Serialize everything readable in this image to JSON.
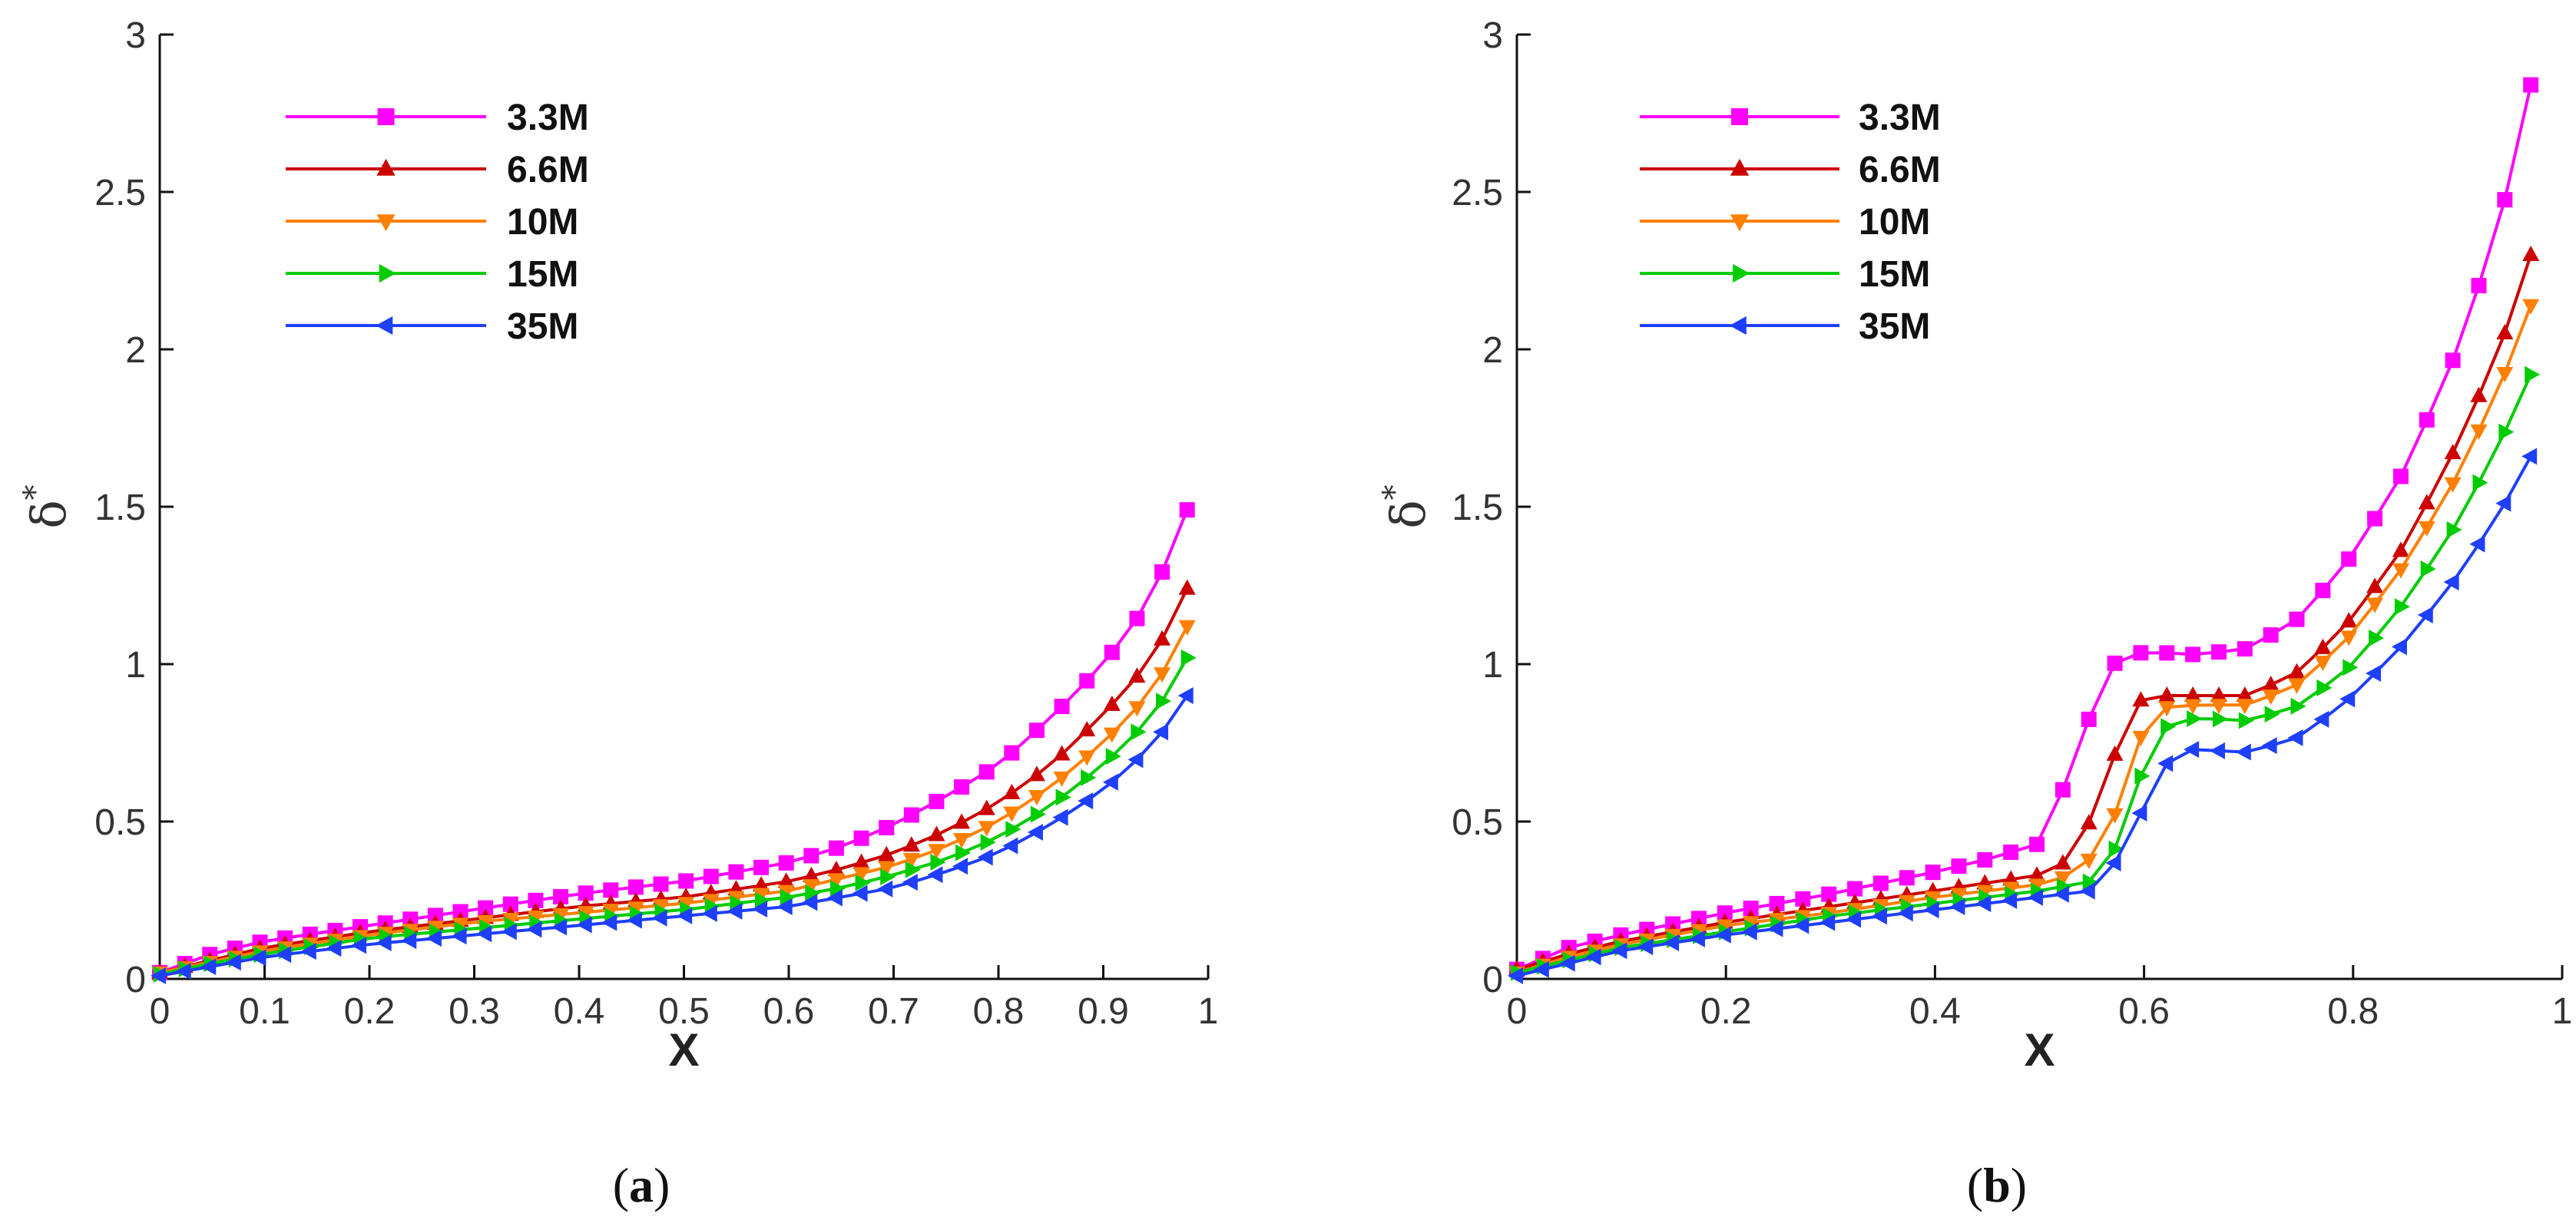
{
  "chart_data": [
    {
      "type": "line",
      "panel": "a",
      "caption_prefix": "(",
      "caption_letter": "a",
      "caption_suffix": ")",
      "xlabel": "X",
      "ylabel": "δ",
      "ylabel_superscript": "*",
      "xlim": [
        0,
        1
      ],
      "ylim": [
        0,
        3
      ],
      "xticks": [
        0,
        0.1,
        0.2,
        0.3,
        0.4,
        0.5,
        0.6,
        0.7,
        0.8,
        0.9,
        1
      ],
      "xtick_labels": [
        "0",
        "0.1",
        "0.2",
        "0.3",
        "0.4",
        "0.5",
        "0.6",
        "0.7",
        "0.8",
        "0.9",
        "1"
      ],
      "yticks": [
        0,
        0.5,
        1,
        1.5,
        2,
        2.5,
        3
      ],
      "ytick_labels": [
        "0",
        "0.5",
        "1",
        "1.5",
        "2",
        "2.5",
        "3"
      ],
      "legend_position": "top-left",
      "x_end": 0.98,
      "n_points": 42,
      "series": [
        {
          "name": "3.3M",
          "color": "#ff00ff",
          "marker": "square",
          "knots": [
            [
              0,
              0.02
            ],
            [
              0.05,
              0.08
            ],
            [
              0.1,
              0.12
            ],
            [
              0.2,
              0.17
            ],
            [
              0.3,
              0.22
            ],
            [
              0.4,
              0.27
            ],
            [
              0.5,
              0.31
            ],
            [
              0.6,
              0.37
            ],
            [
              0.65,
              0.42
            ],
            [
              0.7,
              0.49
            ],
            [
              0.75,
              0.58
            ],
            [
              0.8,
              0.68
            ],
            [
              0.85,
              0.83
            ],
            [
              0.9,
              1.0
            ],
            [
              0.94,
              1.18
            ],
            [
              0.96,
              1.32
            ],
            [
              0.98,
              1.49
            ]
          ]
        },
        {
          "name": "6.6M",
          "color": "#cc0000",
          "marker": "triangle-up",
          "knots": [
            [
              0,
              0.02
            ],
            [
              0.05,
              0.06
            ],
            [
              0.1,
              0.1
            ],
            [
              0.2,
              0.15
            ],
            [
              0.3,
              0.19
            ],
            [
              0.4,
              0.23
            ],
            [
              0.5,
              0.26
            ],
            [
              0.6,
              0.31
            ],
            [
              0.65,
              0.35
            ],
            [
              0.7,
              0.4
            ],
            [
              0.75,
              0.47
            ],
            [
              0.8,
              0.56
            ],
            [
              0.85,
              0.68
            ],
            [
              0.9,
              0.84
            ],
            [
              0.94,
              0.99
            ],
            [
              0.96,
              1.1
            ],
            [
              0.98,
              1.24
            ]
          ]
        },
        {
          "name": "10M",
          "color": "#ff8000",
          "marker": "triangle-down",
          "knots": [
            [
              0,
              0.02
            ],
            [
              0.05,
              0.055
            ],
            [
              0.1,
              0.09
            ],
            [
              0.2,
              0.14
            ],
            [
              0.3,
              0.18
            ],
            [
              0.4,
              0.21
            ],
            [
              0.5,
              0.24
            ],
            [
              0.6,
              0.28
            ],
            [
              0.65,
              0.32
            ],
            [
              0.7,
              0.36
            ],
            [
              0.75,
              0.42
            ],
            [
              0.8,
              0.5
            ],
            [
              0.85,
              0.61
            ],
            [
              0.9,
              0.75
            ],
            [
              0.94,
              0.89
            ],
            [
              0.96,
              0.99
            ],
            [
              0.98,
              1.12
            ]
          ]
        },
        {
          "name": "15M",
          "color": "#00cc00",
          "marker": "triangle-right",
          "knots": [
            [
              0,
              0.015
            ],
            [
              0.05,
              0.05
            ],
            [
              0.1,
              0.08
            ],
            [
              0.2,
              0.13
            ],
            [
              0.3,
              0.16
            ],
            [
              0.4,
              0.19
            ],
            [
              0.5,
              0.22
            ],
            [
              0.6,
              0.26
            ],
            [
              0.65,
              0.29
            ],
            [
              0.7,
              0.33
            ],
            [
              0.75,
              0.38
            ],
            [
              0.8,
              0.45
            ],
            [
              0.85,
              0.55
            ],
            [
              0.9,
              0.68
            ],
            [
              0.94,
              0.81
            ],
            [
              0.96,
              0.9
            ],
            [
              0.98,
              1.02
            ]
          ]
        },
        {
          "name": "35M",
          "color": "#1f3fff",
          "marker": "triangle-left",
          "knots": [
            [
              0,
              0.01
            ],
            [
              0.05,
              0.04
            ],
            [
              0.1,
              0.07
            ],
            [
              0.2,
              0.11
            ],
            [
              0.3,
              0.14
            ],
            [
              0.4,
              0.17
            ],
            [
              0.5,
              0.2
            ],
            [
              0.6,
              0.23
            ],
            [
              0.65,
              0.26
            ],
            [
              0.7,
              0.29
            ],
            [
              0.75,
              0.34
            ],
            [
              0.8,
              0.4
            ],
            [
              0.85,
              0.49
            ],
            [
              0.9,
              0.6
            ],
            [
              0.94,
              0.72
            ],
            [
              0.96,
              0.8
            ],
            [
              0.98,
              0.9
            ]
          ]
        }
      ]
    },
    {
      "type": "line",
      "panel": "b",
      "caption_prefix": "(",
      "caption_letter": "b",
      "caption_suffix": ")",
      "xlabel": "X",
      "ylabel": "δ",
      "ylabel_superscript": "*",
      "xlim": [
        0,
        1
      ],
      "ylim": [
        0,
        3
      ],
      "xticks": [
        0,
        0.2,
        0.4,
        0.6,
        0.8,
        1
      ],
      "xtick_labels": [
        "0",
        "0.2",
        "0.4",
        "0.6",
        "0.8",
        "1"
      ],
      "yticks": [
        0,
        0.5,
        1,
        1.5,
        2,
        2.5,
        3
      ],
      "ytick_labels": [
        "0",
        "0.5",
        "1",
        "1.5",
        "2",
        "2.5",
        "3"
      ],
      "legend_position": "top-left",
      "x_end": 0.97,
      "n_points": 40,
      "series": [
        {
          "name": "3.3M",
          "color": "#ff00ff",
          "marker": "square",
          "knots": [
            [
              0,
              0.03
            ],
            [
              0.05,
              0.1
            ],
            [
              0.1,
              0.14
            ],
            [
              0.2,
              0.21
            ],
            [
              0.3,
              0.27
            ],
            [
              0.4,
              0.34
            ],
            [
              0.45,
              0.38
            ],
            [
              0.5,
              0.43
            ],
            [
              0.52,
              0.58
            ],
            [
              0.55,
              0.85
            ],
            [
              0.57,
              1.0
            ],
            [
              0.6,
              1.04
            ],
            [
              0.65,
              1.03
            ],
            [
              0.7,
              1.05
            ],
            [
              0.75,
              1.15
            ],
            [
              0.8,
              1.35
            ],
            [
              0.85,
              1.62
            ],
            [
              0.9,
              2.0
            ],
            [
              0.94,
              2.4
            ],
            [
              0.97,
              2.84
            ]
          ]
        },
        {
          "name": "6.6M",
          "color": "#cc0000",
          "marker": "triangle-up",
          "knots": [
            [
              0,
              0.03
            ],
            [
              0.05,
              0.08
            ],
            [
              0.1,
              0.12
            ],
            [
              0.2,
              0.18
            ],
            [
              0.3,
              0.23
            ],
            [
              0.4,
              0.28
            ],
            [
              0.5,
              0.33
            ],
            [
              0.53,
              0.38
            ],
            [
              0.56,
              0.58
            ],
            [
              0.58,
              0.8
            ],
            [
              0.6,
              0.9
            ],
            [
              0.65,
              0.9
            ],
            [
              0.7,
              0.9
            ],
            [
              0.75,
              0.98
            ],
            [
              0.8,
              1.15
            ],
            [
              0.85,
              1.38
            ],
            [
              0.9,
              1.7
            ],
            [
              0.94,
              2.0
            ],
            [
              0.97,
              2.3
            ]
          ]
        },
        {
          "name": "10M",
          "color": "#ff8000",
          "marker": "triangle-down",
          "knots": [
            [
              0,
              0.02
            ],
            [
              0.05,
              0.07
            ],
            [
              0.1,
              0.11
            ],
            [
              0.2,
              0.17
            ],
            [
              0.3,
              0.21
            ],
            [
              0.4,
              0.26
            ],
            [
              0.5,
              0.3
            ],
            [
              0.54,
              0.34
            ],
            [
              0.57,
              0.5
            ],
            [
              0.59,
              0.72
            ],
            [
              0.61,
              0.86
            ],
            [
              0.65,
              0.87
            ],
            [
              0.7,
              0.87
            ],
            [
              0.75,
              0.94
            ],
            [
              0.8,
              1.1
            ],
            [
              0.85,
              1.32
            ],
            [
              0.9,
              1.6
            ],
            [
              0.94,
              1.88
            ],
            [
              0.97,
              2.14
            ]
          ]
        },
        {
          "name": "15M",
          "color": "#00cc00",
          "marker": "triangle-right",
          "knots": [
            [
              0,
              0.02
            ],
            [
              0.05,
              0.06
            ],
            [
              0.1,
              0.1
            ],
            [
              0.2,
              0.15
            ],
            [
              0.3,
              0.2
            ],
            [
              0.4,
              0.24
            ],
            [
              0.5,
              0.28
            ],
            [
              0.55,
              0.31
            ],
            [
              0.58,
              0.45
            ],
            [
              0.6,
              0.68
            ],
            [
              0.62,
              0.8
            ],
            [
              0.65,
              0.83
            ],
            [
              0.7,
              0.82
            ],
            [
              0.75,
              0.87
            ],
            [
              0.8,
              1.0
            ],
            [
              0.85,
              1.2
            ],
            [
              0.9,
              1.45
            ],
            [
              0.94,
              1.7
            ],
            [
              0.97,
              1.92
            ]
          ]
        },
        {
          "name": "35M",
          "color": "#1f3fff",
          "marker": "triangle-left",
          "knots": [
            [
              0,
              0.01
            ],
            [
              0.05,
              0.05
            ],
            [
              0.1,
              0.09
            ],
            [
              0.2,
              0.14
            ],
            [
              0.3,
              0.18
            ],
            [
              0.4,
              0.22
            ],
            [
              0.5,
              0.26
            ],
            [
              0.55,
              0.28
            ],
            [
              0.58,
              0.4
            ],
            [
              0.6,
              0.55
            ],
            [
              0.62,
              0.68
            ],
            [
              0.64,
              0.73
            ],
            [
              0.7,
              0.72
            ],
            [
              0.75,
              0.77
            ],
            [
              0.8,
              0.9
            ],
            [
              0.85,
              1.07
            ],
            [
              0.9,
              1.28
            ],
            [
              0.94,
              1.48
            ],
            [
              0.97,
              1.66
            ]
          ]
        }
      ]
    }
  ]
}
